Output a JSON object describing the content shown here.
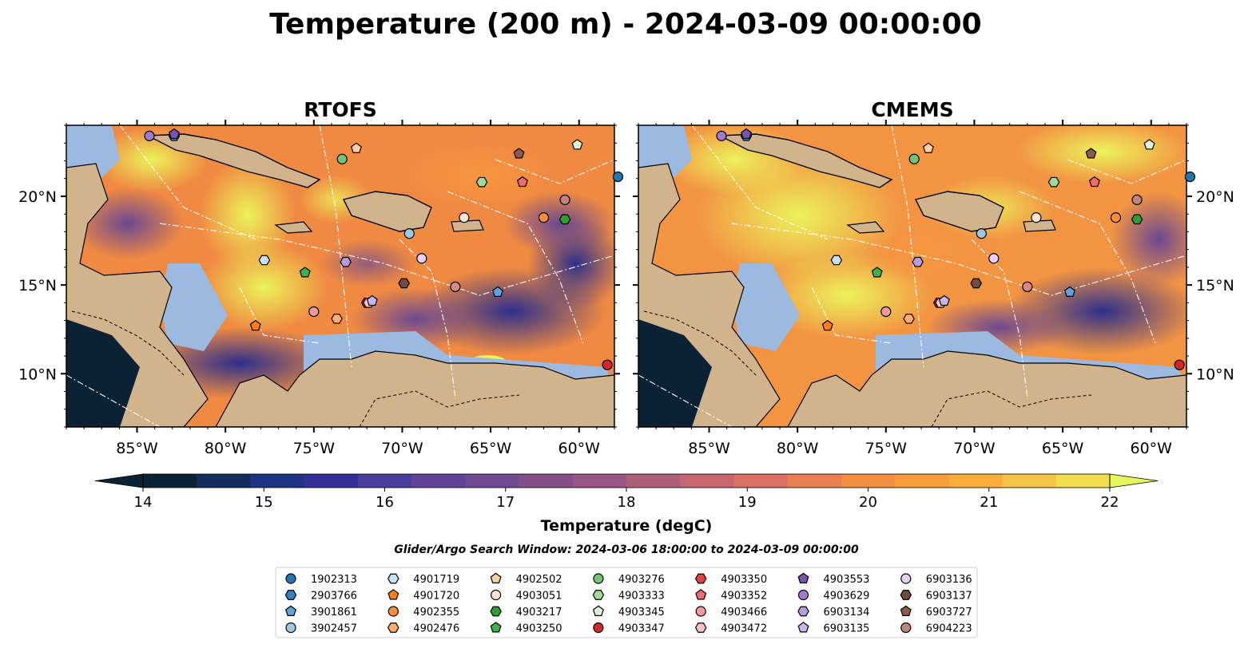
{
  "figure": {
    "title": "Temperature (200 m) - 2024-03-09 00:00:00",
    "search_window": "Glider/Argo Search Window: 2024-03-06 18:00:00 to 2024-03-09 00:00:00"
  },
  "chart_data": {
    "type": "heatmap",
    "panels": [
      {
        "title": "RTOFS"
      },
      {
        "title": "CMEMS"
      }
    ],
    "map_extent": {
      "lon": [
        -89,
        -58
      ],
      "lat": [
        7,
        24
      ]
    },
    "lon_ticks": [
      -85,
      -80,
      -75,
      -70,
      -65,
      -60
    ],
    "lon_tick_labels": [
      "85°W",
      "80°W",
      "75°W",
      "70°W",
      "65°W",
      "60°W"
    ],
    "lat_ticks": [
      10,
      15,
      20
    ],
    "lat_tick_labels": [
      "10°N",
      "15°N",
      "20°N"
    ],
    "colorbar": {
      "label": "Temperature (degC)",
      "min": 14,
      "max": 22,
      "step": 0.5,
      "ticks": [
        14,
        15,
        16,
        17,
        18,
        19,
        20,
        21,
        22
      ],
      "tick_labels": [
        "14",
        "15",
        "16",
        "17",
        "18",
        "19",
        "20",
        "21",
        "22"
      ],
      "colors": [
        "#0a2233",
        "#132d5c",
        "#1e3585",
        "#352f9a",
        "#4a3d9e",
        "#5e4398",
        "#704a90",
        "#844f88",
        "#985682",
        "#ad5e7a",
        "#c66770",
        "#db7164",
        "#ec7f51",
        "#f58d42",
        "#f99c3b",
        "#fbad3c",
        "#f6c547",
        "#f1dc4e"
      ],
      "under_color": "#0a2233",
      "over_color": "#e6f55a"
    },
    "colors": {
      "land": "#d2b48c",
      "shelf": "#9cb9e0",
      "deep_cold": "#0a2233"
    },
    "floats": [
      {
        "id": "1902313",
        "marker": "circle",
        "color": "#1f77b4",
        "lon": -57.8,
        "lat": 21.1
      },
      {
        "id": "2903766",
        "marker": "hexagon",
        "color": "#3a7fc2",
        "lon": -82.9,
        "lat": 23.4
      },
      {
        "id": "3901861",
        "marker": "pentagon",
        "color": "#5fa2e0",
        "lon": -64.6,
        "lat": 14.6
      },
      {
        "id": "3902457",
        "marker": "circle",
        "color": "#9ecae1",
        "lon": -69.6,
        "lat": 17.9
      },
      {
        "id": "4901719",
        "marker": "hexagon",
        "color": "#c6e2f5",
        "lon": -77.8,
        "lat": 16.4
      },
      {
        "id": "4901720",
        "marker": "pentagon",
        "color": "#ff7f0e",
        "lon": -78.3,
        "lat": 12.7
      },
      {
        "id": "4902355",
        "marker": "circle",
        "color": "#fd8d3c",
        "lon": -62.0,
        "lat": 18.8
      },
      {
        "id": "4902476",
        "marker": "hexagon",
        "color": "#fdae6b",
        "lon": -73.7,
        "lat": 13.1
      },
      {
        "id": "4902502",
        "marker": "pentagon",
        "color": "#fdd0a2",
        "lon": -72.6,
        "lat": 22.7
      },
      {
        "id": "4903051",
        "marker": "circle",
        "color": "#fee6ce",
        "lon": -66.5,
        "lat": 18.8
      },
      {
        "id": "4903217",
        "marker": "hexagon",
        "color": "#2ca02c",
        "lon": -60.8,
        "lat": 18.7
      },
      {
        "id": "4903250",
        "marker": "pentagon",
        "color": "#3cb44b",
        "lon": -75.5,
        "lat": 15.7
      },
      {
        "id": "4903276",
        "marker": "circle",
        "color": "#74c476",
        "lon": -73.4,
        "lat": 22.1
      },
      {
        "id": "4903333",
        "marker": "hexagon",
        "color": "#a1d99b",
        "lon": -65.5,
        "lat": 20.8
      },
      {
        "id": "4903345",
        "marker": "pentagon",
        "color": "#dff5d4",
        "lon": -60.1,
        "lat": 22.9
      },
      {
        "id": "4903347",
        "marker": "circle",
        "color": "#d62728",
        "lon": -58.4,
        "lat": 10.5
      },
      {
        "id": "4903350",
        "marker": "hexagon",
        "color": "#e0443c",
        "lon": -72.0,
        "lat": 14.0
      },
      {
        "id": "4903352",
        "marker": "pentagon",
        "color": "#f06b6b",
        "lon": -63.2,
        "lat": 20.8
      },
      {
        "id": "4903466",
        "marker": "circle",
        "color": "#f59a9a",
        "lon": -75.0,
        "lat": 13.5
      },
      {
        "id": "4903472",
        "marker": "hexagon",
        "color": "#f9c2c2",
        "lon": -71.9,
        "lat": 14.0
      },
      {
        "id": "4903553",
        "marker": "pentagon",
        "color": "#7b52b0",
        "lon": -82.9,
        "lat": 23.5
      },
      {
        "id": "4903629",
        "marker": "circle",
        "color": "#9e7bd0",
        "lon": -84.3,
        "lat": 23.4
      },
      {
        "id": "6903134",
        "marker": "hexagon",
        "color": "#b39ddb",
        "lon": -73.2,
        "lat": 16.3
      },
      {
        "id": "6903135",
        "marker": "pentagon",
        "color": "#cbb4f0",
        "lon": -71.7,
        "lat": 14.1
      },
      {
        "id": "6903136",
        "marker": "circle",
        "color": "#e6d0f5",
        "lon": -68.9,
        "lat": 16.5
      },
      {
        "id": "6903137",
        "marker": "hexagon",
        "color": "#6d4c41",
        "lon": -69.9,
        "lat": 15.1
      },
      {
        "id": "6903727",
        "marker": "pentagon",
        "color": "#8d5a4a",
        "lon": -63.4,
        "lat": 22.4
      },
      {
        "id": "6904223",
        "marker": "circle",
        "color": "#c0857a",
        "lon": -60.8,
        "lat": 19.8
      },
      {
        "id": "",
        "marker": "circle",
        "color": "#d88a82",
        "lon": -67.0,
        "lat": 14.9
      }
    ]
  }
}
